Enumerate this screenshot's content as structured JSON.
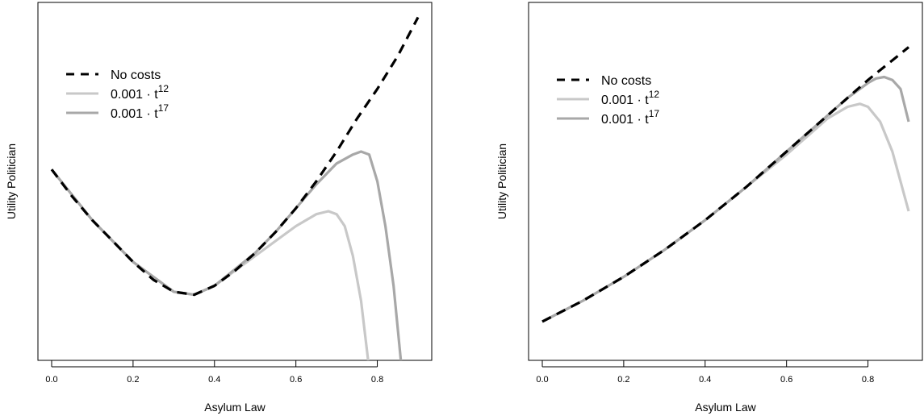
{
  "chart_data": [
    {
      "type": "line",
      "xlabel": "Asylum Law",
      "ylabel": "Utility Politician",
      "xlim": [
        0,
        0.9
      ],
      "x_ticks": [
        "0.0",
        "0.2",
        "0.4",
        "0.6",
        "0.8"
      ],
      "legend_position": "top-left",
      "series": [
        {
          "name": "No costs",
          "color": "#000000",
          "style": "dashed",
          "x": [
            0,
            0.05,
            0.1,
            0.15,
            0.2,
            0.25,
            0.3,
            0.35,
            0.4,
            0.45,
            0.5,
            0.55,
            0.6,
            0.65,
            0.7,
            0.75,
            0.8,
            0.85,
            0.9
          ],
          "y": [
            0.59,
            0.5,
            0.42,
            0.35,
            0.28,
            0.22,
            0.18,
            0.17,
            0.2,
            0.25,
            0.31,
            0.38,
            0.46,
            0.55,
            0.65,
            0.76,
            0.86,
            0.97,
            1.1
          ]
        },
        {
          "name": "0.001 · t^12",
          "label_base": "0.001 · t",
          "label_exp": "12",
          "color": "#c8c8c8",
          "style": "solid",
          "x": [
            0,
            0.1,
            0.2,
            0.3,
            0.35,
            0.4,
            0.5,
            0.55,
            0.6,
            0.65,
            0.68,
            0.7,
            0.72,
            0.74,
            0.76,
            0.78
          ],
          "y": [
            0.59,
            0.42,
            0.28,
            0.18,
            0.17,
            0.2,
            0.3,
            0.35,
            0.4,
            0.44,
            0.45,
            0.44,
            0.4,
            0.3,
            0.15,
            -0.08
          ]
        },
        {
          "name": "0.001 · t^17",
          "label_base": "0.001 · t",
          "label_exp": "17",
          "color": "#a8a8a8",
          "style": "solid",
          "x": [
            0,
            0.1,
            0.2,
            0.3,
            0.35,
            0.4,
            0.5,
            0.55,
            0.6,
            0.65,
            0.7,
            0.74,
            0.76,
            0.78,
            0.8,
            0.82,
            0.84,
            0.86
          ],
          "y": [
            0.59,
            0.42,
            0.28,
            0.18,
            0.17,
            0.2,
            0.31,
            0.38,
            0.46,
            0.54,
            0.61,
            0.64,
            0.65,
            0.64,
            0.55,
            0.4,
            0.2,
            -0.08
          ]
        }
      ]
    },
    {
      "type": "line",
      "xlabel": "Asylum Law",
      "ylabel": "Utility Politician",
      "xlim": [
        0,
        0.9
      ],
      "x_ticks": [
        "0.0",
        "0.2",
        "0.4",
        "0.6",
        "0.8"
      ],
      "legend_position": "top-left",
      "series": [
        {
          "name": "No costs",
          "color": "#000000",
          "style": "dashed",
          "x": [
            0,
            0.1,
            0.2,
            0.3,
            0.4,
            0.5,
            0.6,
            0.7,
            0.8,
            0.9
          ],
          "y": [
            0.08,
            0.15,
            0.23,
            0.32,
            0.42,
            0.53,
            0.65,
            0.77,
            0.89,
            1.0
          ]
        },
        {
          "name": "0.001 · t^12",
          "label_base": "0.001 · t",
          "label_exp": "12",
          "color": "#c8c8c8",
          "style": "solid",
          "x": [
            0,
            0.1,
            0.2,
            0.3,
            0.4,
            0.5,
            0.6,
            0.65,
            0.7,
            0.75,
            0.78,
            0.8,
            0.83,
            0.86,
            0.9
          ],
          "y": [
            0.08,
            0.15,
            0.23,
            0.32,
            0.42,
            0.53,
            0.64,
            0.7,
            0.76,
            0.8,
            0.81,
            0.8,
            0.75,
            0.65,
            0.45
          ]
        },
        {
          "name": "0.001 · t^17",
          "label_base": "0.001 · t",
          "label_exp": "17",
          "color": "#a8a8a8",
          "style": "solid",
          "x": [
            0,
            0.1,
            0.2,
            0.3,
            0.4,
            0.5,
            0.6,
            0.7,
            0.75,
            0.8,
            0.82,
            0.84,
            0.86,
            0.88,
            0.9
          ],
          "y": [
            0.08,
            0.15,
            0.23,
            0.32,
            0.42,
            0.53,
            0.65,
            0.77,
            0.83,
            0.88,
            0.895,
            0.9,
            0.89,
            0.86,
            0.75
          ]
        }
      ]
    }
  ]
}
